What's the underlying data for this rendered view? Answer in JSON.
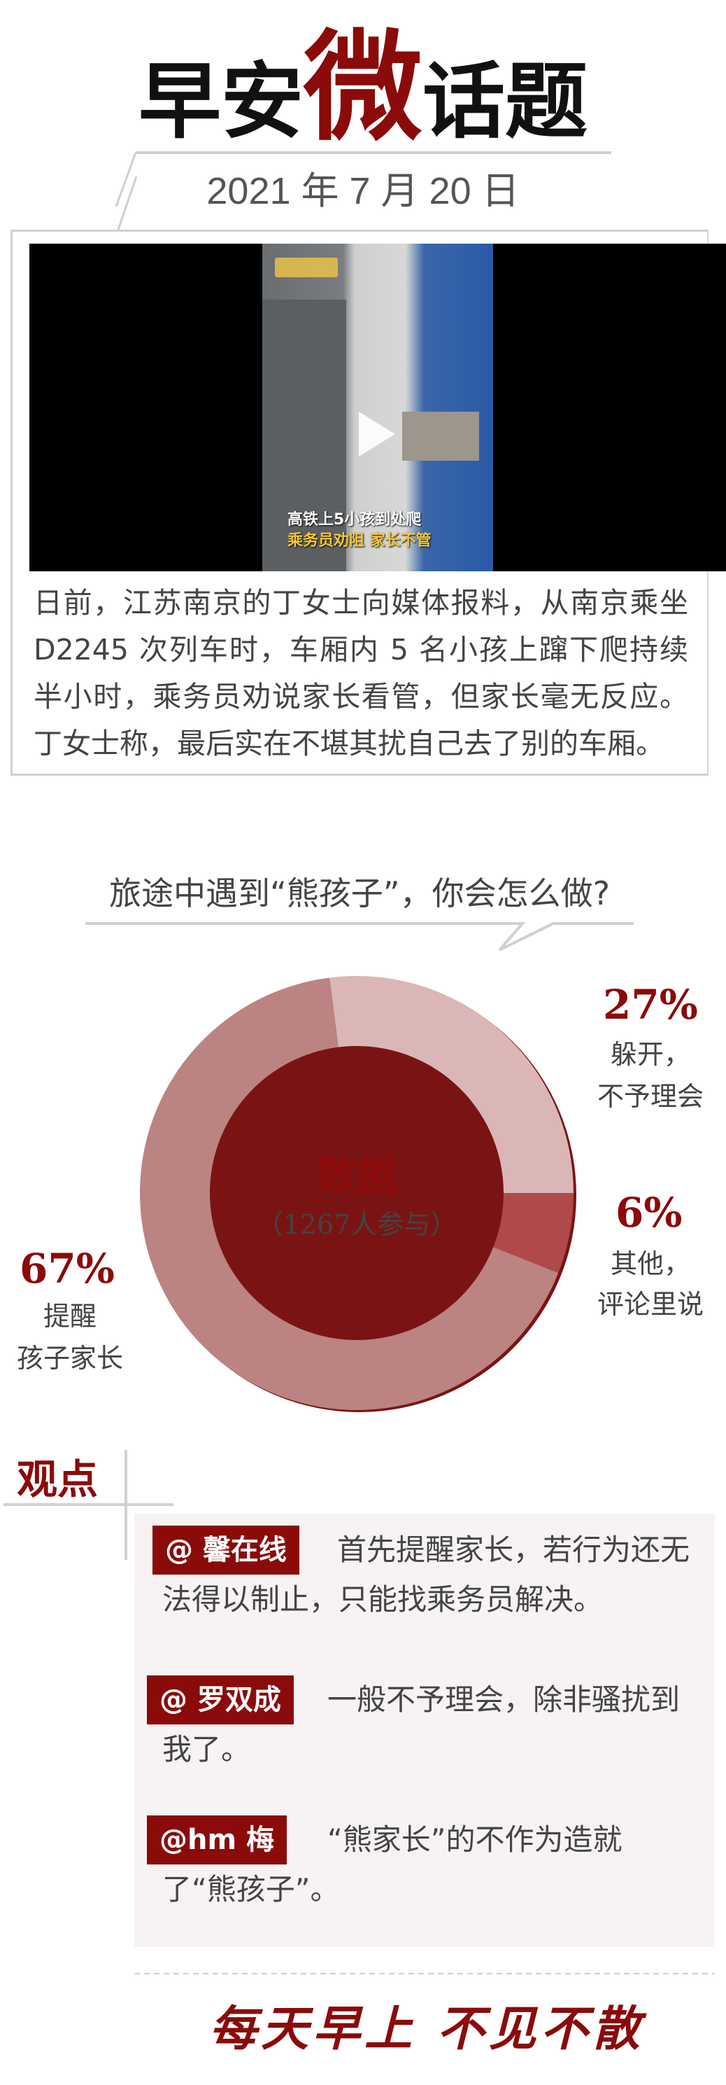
{
  "header": {
    "title_part1": "早安",
    "title_accent": "微",
    "title_part2": "话题",
    "date": "2021 年 7 月 20 日"
  },
  "video": {
    "caption_line1": "高铁上5小孩到处爬",
    "caption_line2": "乘务员劝阻 家长不管",
    "play_icon": "play-icon"
  },
  "story": {
    "text": "日前，江苏南京的丁女士向媒体报料，从南京乘坐 D2245 次列车时，车厢内 5 名小孩上蹿下爬持续半小时，乘务员劝说家长看管，但家长毫无反应。丁女士称，最后实在不堪其扰自己去了别的车厢。"
  },
  "poll": {
    "question": "旅途中遇到“熊孩子”，你会怎么做?",
    "center_title": "数据",
    "center_subtitle": "（1267人参与）"
  },
  "chart_data": {
    "type": "pie",
    "donut": true,
    "slices": [
      {
        "label_line1": "躲开，",
        "label_line2": "不予理会",
        "value": 27,
        "pct_label": "27%",
        "color": "#dbb6b6"
      },
      {
        "label_line1": "其他，",
        "label_line2": "评论里说",
        "value": 6,
        "pct_label": "6%",
        "color": "#b04a4a"
      },
      {
        "label_line1": "提醒",
        "label_line2": "孩子家长",
        "value": 67,
        "pct_label": "67%",
        "color": "#bc8383"
      }
    ]
  },
  "views": {
    "heading": "观点",
    "comments": [
      {
        "user": "@ 馨在线",
        "text": "首先提醒家长，若行为还无法得以制止，只能找乘务员解决。"
      },
      {
        "user": "@ 罗双成",
        "text": "一般不予理会，除非骚扰到我了。"
      },
      {
        "user": "@hm 梅",
        "text": "“熊家长”的不作为造就了“熊孩子”。"
      }
    ]
  },
  "footer": {
    "slogan": "每天早上  不见不散"
  },
  "colors": {
    "accent": "#8b0a0a",
    "comment_bg": "#f6f3f2",
    "divider": "#d0d0d0"
  }
}
